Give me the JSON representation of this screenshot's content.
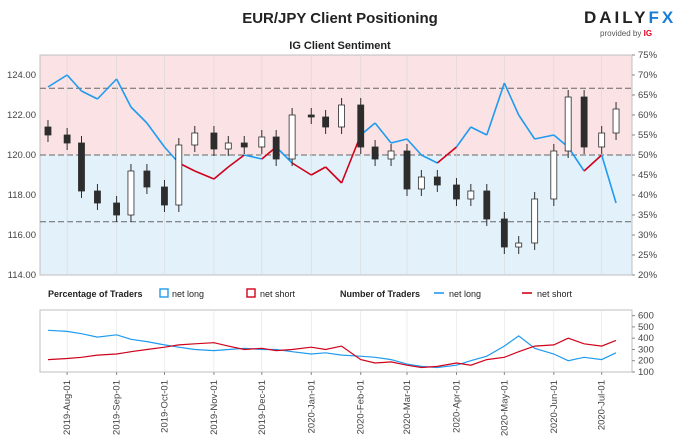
{
  "title": "EUR/JPY Client Positioning",
  "subtitle": "IG Client Sentiment",
  "logo": {
    "brand_a": "DAILY",
    "brand_b": "FX",
    "provided_by": "provided by",
    "ig": "IG"
  },
  "colors": {
    "net_long": "#1f9bf0",
    "net_short": "#d0021b",
    "bull_candle": "#ffffff",
    "bear_candle": "#2d2d2d",
    "upper_bg": "#fbe2e4",
    "lower_bg": "#e3f1fb"
  },
  "chart_data": [
    {
      "type": "candlestick",
      "name": "EUR/JPY",
      "y_left_ticks": [
        "114.00",
        "116.00",
        "118.00",
        "120.00",
        "122.00",
        "124.00"
      ],
      "ylim_left": [
        114,
        125
      ],
      "y_right_ticks": [
        "20%",
        "25%",
        "30%",
        "35%",
        "40%",
        "45%",
        "50%",
        "55%",
        "60%",
        "65%",
        "70%",
        "75%"
      ],
      "ylim_right": [
        20,
        75
      ],
      "x_ticks": [
        "2019-Aug-01",
        "2019-Sep-01",
        "2019-Oct-01",
        "2019-Nov-01",
        "2019-Dec-01",
        "2020-Jan-01",
        "2020-Feb-01",
        "2020-Mar-01",
        "2020-Apr-01",
        "2020-May-01",
        "2020-Jun-01",
        "2020-Jul-01"
      ],
      "price_x": [
        "2019-Jul-20",
        "2019-Aug-01",
        "2019-Aug-10",
        "2019-Aug-20",
        "2019-Sep-01",
        "2019-Sep-10",
        "2019-Sep-20",
        "2019-Oct-01",
        "2019-Oct-10",
        "2019-Oct-20",
        "2019-Nov-01",
        "2019-Nov-10",
        "2019-Nov-20",
        "2019-Dec-01",
        "2019-Dec-10",
        "2019-Dec-20",
        "2020-Jan-01",
        "2020-Jan-10",
        "2020-Jan-20",
        "2020-Feb-01",
        "2020-Feb-10",
        "2020-Feb-20",
        "2020-Mar-01",
        "2020-Mar-10",
        "2020-Mar-20",
        "2020-Apr-01",
        "2020-Apr-10",
        "2020-Apr-20",
        "2020-May-01",
        "2020-May-10",
        "2020-May-20",
        "2020-Jun-01",
        "2020-Jun-10",
        "2020-Jun-20",
        "2020-Jul-01",
        "2020-Jul-10"
      ],
      "price_close": [
        121.0,
        120.6,
        118.2,
        117.6,
        117.0,
        119.2,
        118.4,
        117.5,
        120.5,
        121.1,
        120.3,
        120.6,
        120.4,
        120.9,
        119.8,
        122.0,
        121.9,
        121.4,
        122.5,
        120.4,
        119.8,
        120.2,
        118.3,
        118.9,
        118.5,
        117.8,
        118.2,
        116.8,
        115.4,
        115.6,
        117.8,
        120.2,
        122.9,
        120.4,
        121.1,
        122.3
      ],
      "percent_long_x": [
        "2019-Jul-20",
        "2019-Aug-01",
        "2019-Aug-10",
        "2019-Aug-20",
        "2019-Sep-01",
        "2019-Sep-10",
        "2019-Sep-20",
        "2019-Oct-01",
        "2019-Oct-10",
        "2019-Oct-20",
        "2019-Nov-01",
        "2019-Nov-10",
        "2019-Nov-20",
        "2019-Dec-01",
        "2019-Dec-10",
        "2019-Dec-20",
        "2020-Jan-01",
        "2020-Jan-10",
        "2020-Jan-20",
        "2020-Feb-01",
        "2020-Feb-10",
        "2020-Feb-20",
        "2020-Mar-01",
        "2020-Mar-10",
        "2020-Mar-20",
        "2020-Apr-01",
        "2020-Apr-10",
        "2020-Apr-20",
        "2020-May-01",
        "2020-May-10",
        "2020-May-20",
        "2020-Jun-01",
        "2020-Jun-10",
        "2020-Jun-20",
        "2020-Jul-01",
        "2020-Jul-10"
      ],
      "percent_long": [
        67,
        70,
        66,
        64,
        69,
        62,
        58,
        52,
        48,
        46,
        44,
        47,
        50,
        49,
        52,
        48,
        45,
        47,
        43,
        55,
        58,
        53,
        54,
        50,
        48,
        52,
        57,
        55,
        68,
        60,
        54,
        55,
        52,
        46,
        50,
        38
      ],
      "series": [
        {
          "name": "net long"
        },
        {
          "name": "net short"
        }
      ]
    },
    {
      "type": "line",
      "yticks": [
        "100",
        "200",
        "300",
        "400",
        "500",
        "600"
      ],
      "ylim": [
        100,
        650
      ],
      "x": [
        "2019-Jul-20",
        "2019-Aug-01",
        "2019-Aug-10",
        "2019-Aug-20",
        "2019-Sep-01",
        "2019-Sep-10",
        "2019-Sep-20",
        "2019-Oct-01",
        "2019-Oct-10",
        "2019-Oct-20",
        "2019-Nov-01",
        "2019-Nov-10",
        "2019-Nov-20",
        "2019-Dec-01",
        "2019-Dec-10",
        "2019-Dec-20",
        "2020-Jan-01",
        "2020-Jan-10",
        "2020-Jan-20",
        "2020-Feb-01",
        "2020-Feb-10",
        "2020-Feb-20",
        "2020-Mar-01",
        "2020-Mar-10",
        "2020-Mar-20",
        "2020-Apr-01",
        "2020-Apr-10",
        "2020-Apr-20",
        "2020-May-01",
        "2020-May-10",
        "2020-May-20",
        "2020-Jun-01",
        "2020-Jun-10",
        "2020-Jun-20",
        "2020-Jul-01",
        "2020-Jul-10"
      ],
      "series": [
        {
          "name": "net long",
          "values": [
            470,
            460,
            440,
            410,
            430,
            390,
            370,
            340,
            320,
            300,
            290,
            300,
            310,
            300,
            300,
            280,
            260,
            270,
            250,
            240,
            230,
            210,
            170,
            150,
            140,
            160,
            200,
            240,
            330,
            420,
            310,
            260,
            200,
            230,
            210,
            270
          ]
        },
        {
          "name": "net short",
          "values": [
            210,
            220,
            230,
            250,
            260,
            280,
            300,
            320,
            340,
            350,
            360,
            330,
            300,
            310,
            290,
            300,
            320,
            300,
            330,
            210,
            180,
            190,
            160,
            140,
            150,
            180,
            160,
            210,
            230,
            280,
            330,
            340,
            400,
            350,
            330,
            380
          ]
        }
      ]
    }
  ],
  "legend": {
    "pct_title": "Percentage of Traders",
    "pct_long": "net long",
    "pct_short": "net short",
    "num_title": "Number of Traders",
    "num_long": "net long",
    "num_short": "net short"
  }
}
